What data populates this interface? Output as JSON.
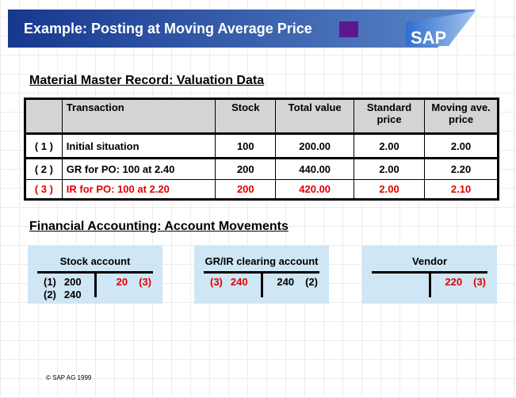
{
  "header": {
    "title": "Example: Posting at Moving Average Price",
    "logo": "SAP"
  },
  "valuation": {
    "heading": "Material Master Record: Valuation Data",
    "table": {
      "columns": [
        "",
        "Transaction",
        "Stock",
        "Total value",
        "Standard price",
        "Moving ave. price"
      ],
      "rows": [
        {
          "cells": [
            "( 1 )",
            "Initial situation",
            "100",
            "200.00",
            "2.00",
            "2.00"
          ],
          "color": "#000000"
        },
        {
          "cells": [
            "( 2 )",
            "GR for PO: 100 at 2.40",
            "200",
            "440.00",
            "2.00",
            "2.20"
          ],
          "color": "#000000"
        },
        {
          "cells": [
            "( 3 )",
            "IR for PO: 100 at 2.20",
            "200",
            "420.00",
            "2.00",
            "2.10"
          ],
          "color": "#e00000"
        }
      ]
    }
  },
  "accounting": {
    "heading": "Financial Accounting: Account Movements",
    "accounts": [
      {
        "name": "Stock account",
        "debit": [
          {
            "ref": "(1)",
            "amount": "200",
            "color": "#000000"
          },
          {
            "ref": "(2)",
            "amount": "240",
            "color": "#000000"
          }
        ],
        "credit": [
          {
            "amount": "20",
            "ref": "(3)",
            "color": "#e00000"
          }
        ]
      },
      {
        "name": "GR/IR clearing account",
        "debit": [
          {
            "ref": "(3)",
            "amount": "240",
            "color": "#e00000"
          }
        ],
        "credit": [
          {
            "amount": "240",
            "ref": "(2)",
            "color": "#000000"
          }
        ]
      },
      {
        "name": "Vendor",
        "debit": [],
        "credit": [
          {
            "amount": "220",
            "ref": "(3)",
            "color": "#e00000"
          }
        ]
      }
    ]
  },
  "footer": {
    "copyright": "© SAP AG 1999"
  }
}
